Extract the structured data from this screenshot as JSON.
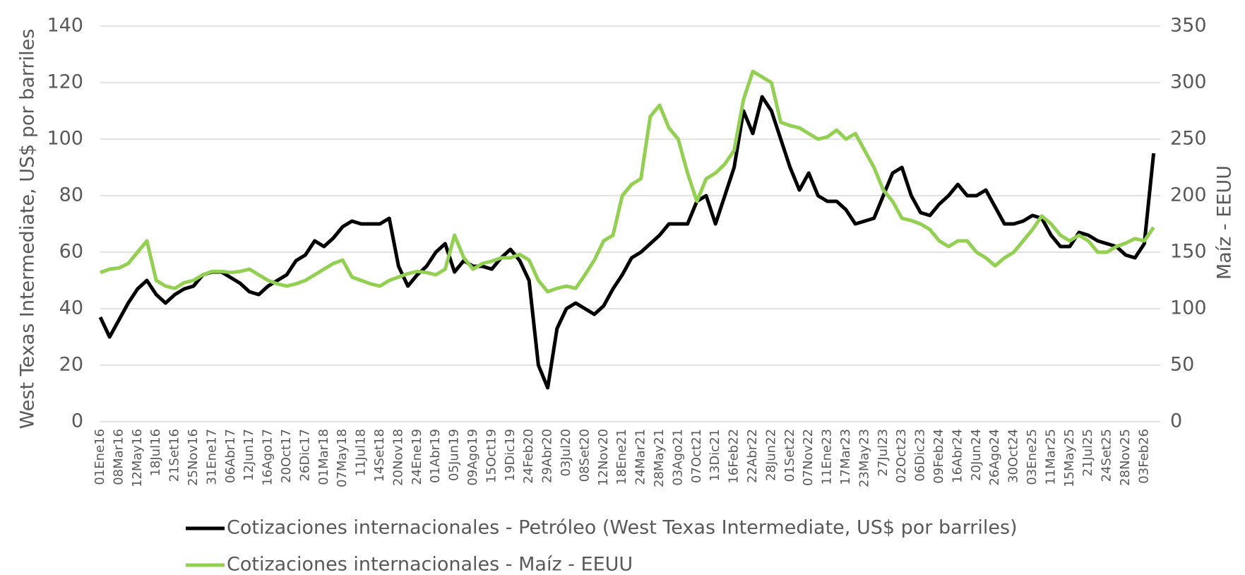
{
  "chart_data": {
    "type": "line",
    "y_label": "West Texas Intermediate, US$ por barriles",
    "y2_label": "Maíz - EEUU",
    "categories": [
      "01Ene16",
      null,
      "08Mar16",
      null,
      "12May16",
      null,
      "18Jul16",
      null,
      "21Set16",
      null,
      "25Nov16",
      null,
      "31Ene17",
      null,
      "06Abr17",
      null,
      "12Jun17",
      null,
      "16Ago17",
      null,
      "20Oct17",
      null,
      "26Dic17",
      null,
      "01Mar18",
      null,
      "07May18",
      null,
      "11Jul18",
      null,
      "14Set18",
      null,
      "20Nov18",
      null,
      "24Ene19",
      null,
      "01Abr19",
      null,
      "05Jun19",
      null,
      "09Ago19",
      null,
      "15Oct19",
      null,
      "19Dic19",
      null,
      "24Feb20",
      null,
      "29Abr20",
      null,
      "03Jul20",
      null,
      "08Set20",
      null,
      "12Nov20",
      null,
      "18Ene21",
      null,
      "24Mar21",
      null,
      "28May21",
      null,
      "03Ago21",
      null,
      "07Oct21",
      null,
      "13Dic21",
      null,
      "16Feb22",
      null,
      "22Abr22",
      null,
      "28Jun22",
      null,
      "01Set22",
      null,
      "07Nov22",
      null,
      "11Ene23",
      null,
      "17Mar23",
      null,
      "23May23",
      null,
      "27Jul23",
      null,
      "02Oct23",
      null,
      "06Dic23",
      null,
      "09Feb24",
      null,
      "16Abr24",
      null,
      "20Jun24",
      null,
      "26Ago24",
      null,
      "30Oct24",
      null,
      "03Ene25",
      null,
      "11Mar25",
      null,
      "15May25",
      null,
      "21Jul25",
      null,
      "24Set25",
      null,
      "28Nov25",
      null,
      "03Feb26",
      null
    ],
    "series": [
      {
        "name": "Cotizaciones internacionales - Petróleo (West Texas Intermediate, US$ por barriles)",
        "color": "#000000",
        "axis": "y",
        "values": [
          37,
          30,
          36,
          42,
          47,
          50,
          45,
          42,
          45,
          47,
          48,
          52,
          53,
          53,
          51,
          49,
          46,
          45,
          48,
          50,
          52,
          57,
          59,
          64,
          62,
          65,
          69,
          71,
          70,
          70,
          70,
          72,
          55,
          48,
          52,
          55,
          60,
          63,
          53,
          57,
          55,
          55,
          54,
          58,
          61,
          57,
          50,
          20,
          12,
          33,
          40,
          42,
          40,
          38,
          41,
          47,
          52,
          58,
          60,
          63,
          66,
          70,
          70,
          70,
          78,
          80,
          70,
          80,
          90,
          110,
          102,
          115,
          110,
          100,
          90,
          82,
          88,
          80,
          78,
          78,
          75,
          70,
          71,
          72,
          80,
          88,
          90,
          80,
          74,
          73,
          77,
          80,
          84,
          80,
          80,
          82,
          76,
          70,
          70,
          71,
          73,
          72,
          66,
          62,
          62,
          67,
          66,
          64,
          63,
          62,
          59,
          58,
          63,
          95
        ]
      },
      {
        "name": "Cotizaciones internacionales - Maíz - EEUU",
        "color": "#92d050",
        "axis": "y2",
        "values": [
          132,
          135,
          136,
          140,
          150,
          160,
          125,
          120,
          118,
          123,
          125,
          130,
          133,
          133,
          132,
          133,
          135,
          130,
          125,
          122,
          120,
          122,
          125,
          130,
          135,
          140,
          143,
          128,
          125,
          122,
          120,
          125,
          128,
          131,
          133,
          132,
          130,
          135,
          165,
          145,
          135,
          140,
          142,
          145,
          145,
          148,
          143,
          125,
          115,
          118,
          120,
          118,
          130,
          143,
          160,
          165,
          200,
          210,
          215,
          270,
          280,
          260,
          250,
          220,
          195,
          215,
          220,
          228,
          240,
          285,
          310,
          305,
          300,
          265,
          262,
          260,
          255,
          250,
          252,
          258,
          250,
          255,
          240,
          225,
          205,
          195,
          180,
          178,
          175,
          170,
          160,
          155,
          160,
          160,
          150,
          145,
          138,
          145,
          150,
          160,
          170,
          182,
          175,
          165,
          160,
          165,
          160,
          150,
          150,
          155,
          158,
          162,
          160,
          172
        ]
      }
    ],
    "ylim": [
      0,
      140
    ],
    "yticks": [
      0,
      20,
      40,
      60,
      80,
      100,
      120,
      140
    ],
    "y2lim": [
      0,
      350
    ],
    "y2ticks": [
      0,
      50,
      100,
      150,
      200,
      250,
      300,
      350
    ],
    "grid": true,
    "legend": "bottom"
  }
}
